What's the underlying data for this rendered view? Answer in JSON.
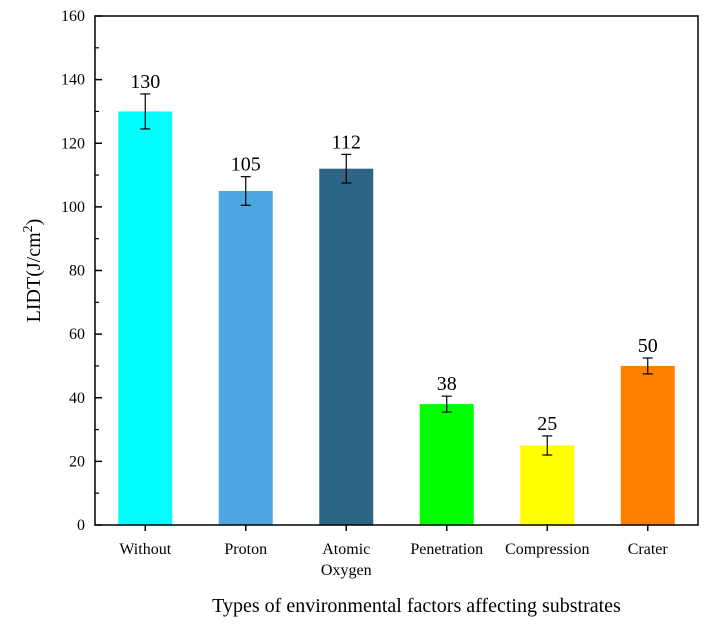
{
  "chart_data": {
    "type": "bar",
    "categories": [
      [
        "Without"
      ],
      [
        "Proton"
      ],
      [
        "Atomic",
        "Oxygen"
      ],
      [
        "Penetration"
      ],
      [
        "Compression"
      ],
      [
        "Crater"
      ]
    ],
    "values": [
      130,
      105,
      112,
      38,
      25,
      50
    ],
    "errors": [
      5.5,
      4.5,
      4.5,
      2.5,
      3.0,
      2.5
    ],
    "data_labels": [
      "130",
      "105",
      "112",
      "38",
      "25",
      "50"
    ],
    "colors": [
      "#00FFFF",
      "#4EA6E0",
      "#2D6585",
      "#00FF00",
      "#FFFF00",
      "#FF7F00"
    ],
    "title": "",
    "xlabel": "Types of environmental factors affecting substrates",
    "ylabel": {
      "main": "LIDT(J/cm",
      "superscript": "2",
      "suffix": ")"
    },
    "ylim": [
      0,
      160
    ],
    "yticks": [
      "0",
      "20",
      "40",
      "60",
      "80",
      "100",
      "120",
      "140",
      "160"
    ],
    "grid": false,
    "legend": "none"
  }
}
